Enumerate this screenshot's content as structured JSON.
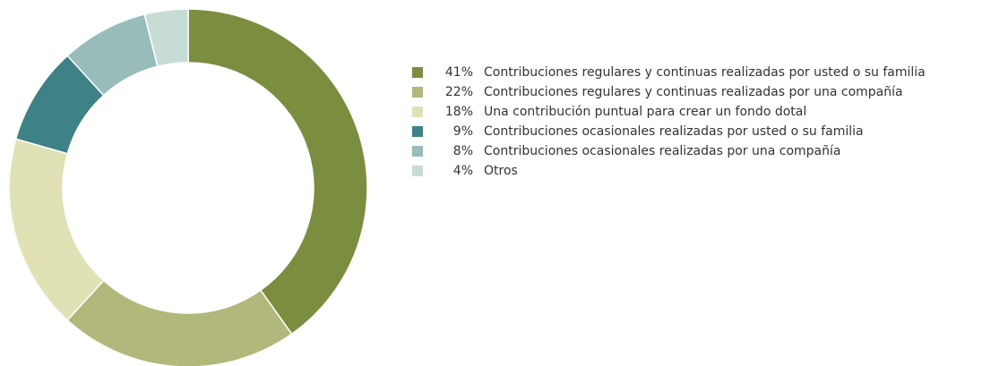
{
  "chart_data": {
    "type": "donut",
    "categories": [
      "Contribuciones regulares y continuas realizadas por usted o su familia",
      "Contribuciones regulares y continuas realizadas por una compañía",
      "Una contribución puntual para crear un fondo dotal",
      "Contribuciones ocasionales realizadas por usted o su familia",
      "Contribuciones ocasionales realizadas por una compañía",
      "Otros"
    ],
    "values": [
      41,
      22,
      18,
      9,
      8,
      4
    ],
    "value_labels": [
      "41%",
      "22%",
      "18%",
      "9%",
      "8%",
      "4%"
    ],
    "colors": [
      "#7b8d3f",
      "#b2b77b",
      "#e1e1b6",
      "#3e8187",
      "#97bcb9",
      "#c7dcd4"
    ]
  }
}
